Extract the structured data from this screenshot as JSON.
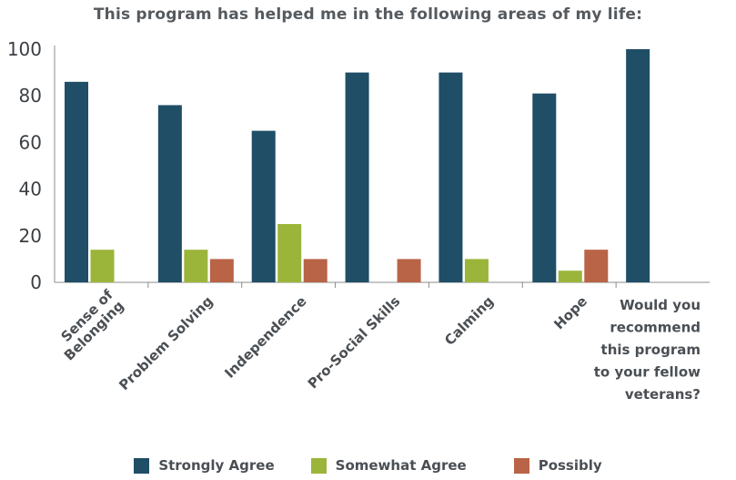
{
  "chart_data": {
    "type": "bar",
    "title": "This program has helped me in the following areas of my life:",
    "xlabel": "",
    "ylabel": "",
    "ylim": [
      0,
      100
    ],
    "yticks": [
      0,
      20,
      40,
      60,
      80,
      100
    ],
    "grid": false,
    "legend_position": "bottom",
    "categories": [
      [
        "Sense of",
        "Belonging"
      ],
      [
        "Problem Solving"
      ],
      [
        "Independence"
      ],
      [
        "Pro-Social Skills"
      ],
      [
        "Calming"
      ],
      [
        "Hope"
      ],
      [
        "Would you",
        "recommend",
        "this program",
        "to your fellow",
        "veterans?"
      ]
    ],
    "series": [
      {
        "name": "Strongly Agree",
        "color": "#1f4e66",
        "values": [
          86,
          76,
          65,
          90,
          90,
          81,
          100
        ]
      },
      {
        "name": "Somewhat Agree",
        "color": "#9bb53a",
        "values": [
          14,
          14,
          25,
          0,
          10,
          5,
          0
        ]
      },
      {
        "name": "Possibly",
        "color": "#b96446",
        "values": [
          0,
          10,
          10,
          10,
          0,
          14,
          0
        ]
      }
    ]
  }
}
